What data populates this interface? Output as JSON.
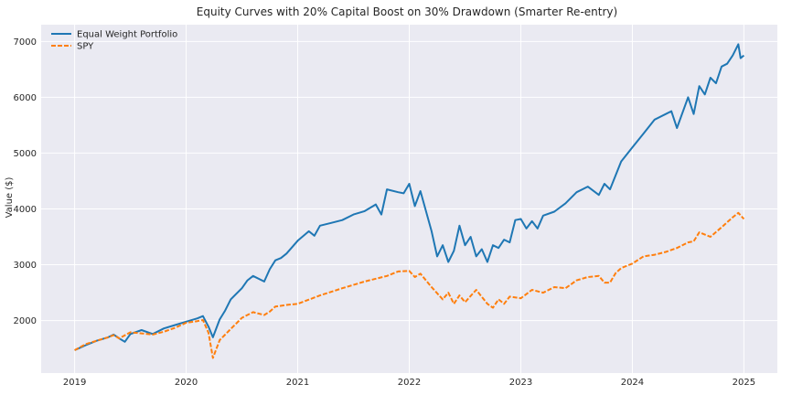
{
  "chart_data": {
    "type": "line",
    "title": "Equity Curves with 20% Capital Boost on 30% Drawdown (Smarter Re-entry)",
    "xlabel": "",
    "ylabel": "Value ($)",
    "x_range": [
      2018.7,
      2025.3
    ],
    "ylim": [
      1060,
      7300
    ],
    "x_ticks": [
      2019,
      2020,
      2021,
      2022,
      2023,
      2024,
      2025
    ],
    "x_tick_labels": [
      "2019",
      "2020",
      "2021",
      "2022",
      "2023",
      "2024",
      "2025"
    ],
    "y_ticks": [
      2000,
      3000,
      4000,
      5000,
      6000,
      7000
    ],
    "y_tick_labels": [
      "2000",
      "3000",
      "4000",
      "5000",
      "6000",
      "7000"
    ],
    "grid": true,
    "legend": "top-left",
    "series": [
      {
        "name": "Equal Weight Portfolio",
        "color": "#1f77b4",
        "style": "solid",
        "x": [
          2019.0,
          2019.1,
          2019.2,
          2019.3,
          2019.35,
          2019.4,
          2019.45,
          2019.5,
          2019.6,
          2019.7,
          2019.8,
          2019.9,
          2020.0,
          2020.1,
          2020.15,
          2020.2,
          2020.24,
          2020.3,
          2020.35,
          2020.4,
          2020.5,
          2020.55,
          2020.6,
          2020.7,
          2020.75,
          2020.8,
          2020.85,
          2020.9,
          2021.0,
          2021.1,
          2021.15,
          2021.2,
          2021.3,
          2021.4,
          2021.5,
          2021.6,
          2021.7,
          2021.75,
          2021.8,
          2021.9,
          2021.95,
          2022.0,
          2022.05,
          2022.1,
          2022.2,
          2022.25,
          2022.3,
          2022.35,
          2022.4,
          2022.45,
          2022.5,
          2022.55,
          2022.6,
          2022.65,
          2022.7,
          2022.75,
          2022.8,
          2022.85,
          2022.9,
          2022.95,
          2023.0,
          2023.05,
          2023.1,
          2023.15,
          2023.2,
          2023.3,
          2023.4,
          2023.5,
          2023.6,
          2023.7,
          2023.75,
          2023.8,
          2023.85,
          2023.9,
          2024.0,
          2024.1,
          2024.2,
          2024.3,
          2024.35,
          2024.4,
          2024.5,
          2024.55,
          2024.6,
          2024.65,
          2024.7,
          2024.75,
          2024.8,
          2024.85,
          2024.9,
          2024.95,
          2024.97,
          2025.0
        ],
        "y": [
          1470,
          1560,
          1640,
          1700,
          1750,
          1680,
          1620,
          1760,
          1830,
          1760,
          1860,
          1920,
          1980,
          2040,
          2080,
          1890,
          1700,
          2020,
          2180,
          2380,
          2580,
          2720,
          2800,
          2700,
          2920,
          3080,
          3120,
          3200,
          3430,
          3600,
          3520,
          3700,
          3750,
          3800,
          3900,
          3960,
          4080,
          3900,
          4350,
          4300,
          4280,
          4450,
          4050,
          4320,
          3600,
          3150,
          3350,
          3050,
          3250,
          3700,
          3350,
          3500,
          3150,
          3280,
          3050,
          3350,
          3300,
          3450,
          3400,
          3800,
          3820,
          3650,
          3780,
          3650,
          3880,
          3950,
          4100,
          4300,
          4400,
          4250,
          4450,
          4350,
          4600,
          4850,
          5100,
          5350,
          5600,
          5700,
          5750,
          5450,
          6000,
          5700,
          6200,
          6050,
          6350,
          6250,
          6550,
          6600,
          6750,
          6950,
          6700,
          6750
        ]
      },
      {
        "name": "SPY",
        "color": "#ff7f0e",
        "style": "dashed",
        "x": [
          2019.0,
          2019.1,
          2019.2,
          2019.3,
          2019.35,
          2019.4,
          2019.5,
          2019.6,
          2019.7,
          2019.8,
          2019.9,
          2020.0,
          2020.1,
          2020.15,
          2020.2,
          2020.24,
          2020.3,
          2020.4,
          2020.5,
          2020.6,
          2020.7,
          2020.75,
          2020.8,
          2020.9,
          2021.0,
          2021.2,
          2021.4,
          2021.6,
          2021.8,
          2021.9,
          2022.0,
          2022.05,
          2022.1,
          2022.2,
          2022.3,
          2022.35,
          2022.4,
          2022.45,
          2022.5,
          2022.6,
          2022.7,
          2022.75,
          2022.8,
          2022.85,
          2022.9,
          2023.0,
          2023.1,
          2023.2,
          2023.3,
          2023.4,
          2023.5,
          2023.6,
          2023.7,
          2023.75,
          2023.8,
          2023.85,
          2023.9,
          2024.0,
          2024.1,
          2024.2,
          2024.3,
          2024.4,
          2024.5,
          2024.55,
          2024.6,
          2024.7,
          2024.8,
          2024.9,
          2024.95,
          2025.0
        ],
        "y": [
          1470,
          1580,
          1640,
          1700,
          1740,
          1680,
          1790,
          1770,
          1750,
          1800,
          1870,
          1960,
          1990,
          2010,
          1780,
          1330,
          1650,
          1850,
          2050,
          2150,
          2100,
          2160,
          2250,
          2280,
          2300,
          2450,
          2580,
          2700,
          2800,
          2880,
          2890,
          2780,
          2840,
          2600,
          2380,
          2500,
          2300,
          2450,
          2330,
          2550,
          2300,
          2230,
          2380,
          2300,
          2430,
          2400,
          2550,
          2500,
          2600,
          2580,
          2720,
          2780,
          2800,
          2680,
          2680,
          2850,
          2940,
          3020,
          3150,
          3180,
          3230,
          3300,
          3400,
          3420,
          3580,
          3500,
          3670,
          3850,
          3930,
          3820
        ]
      }
    ]
  }
}
